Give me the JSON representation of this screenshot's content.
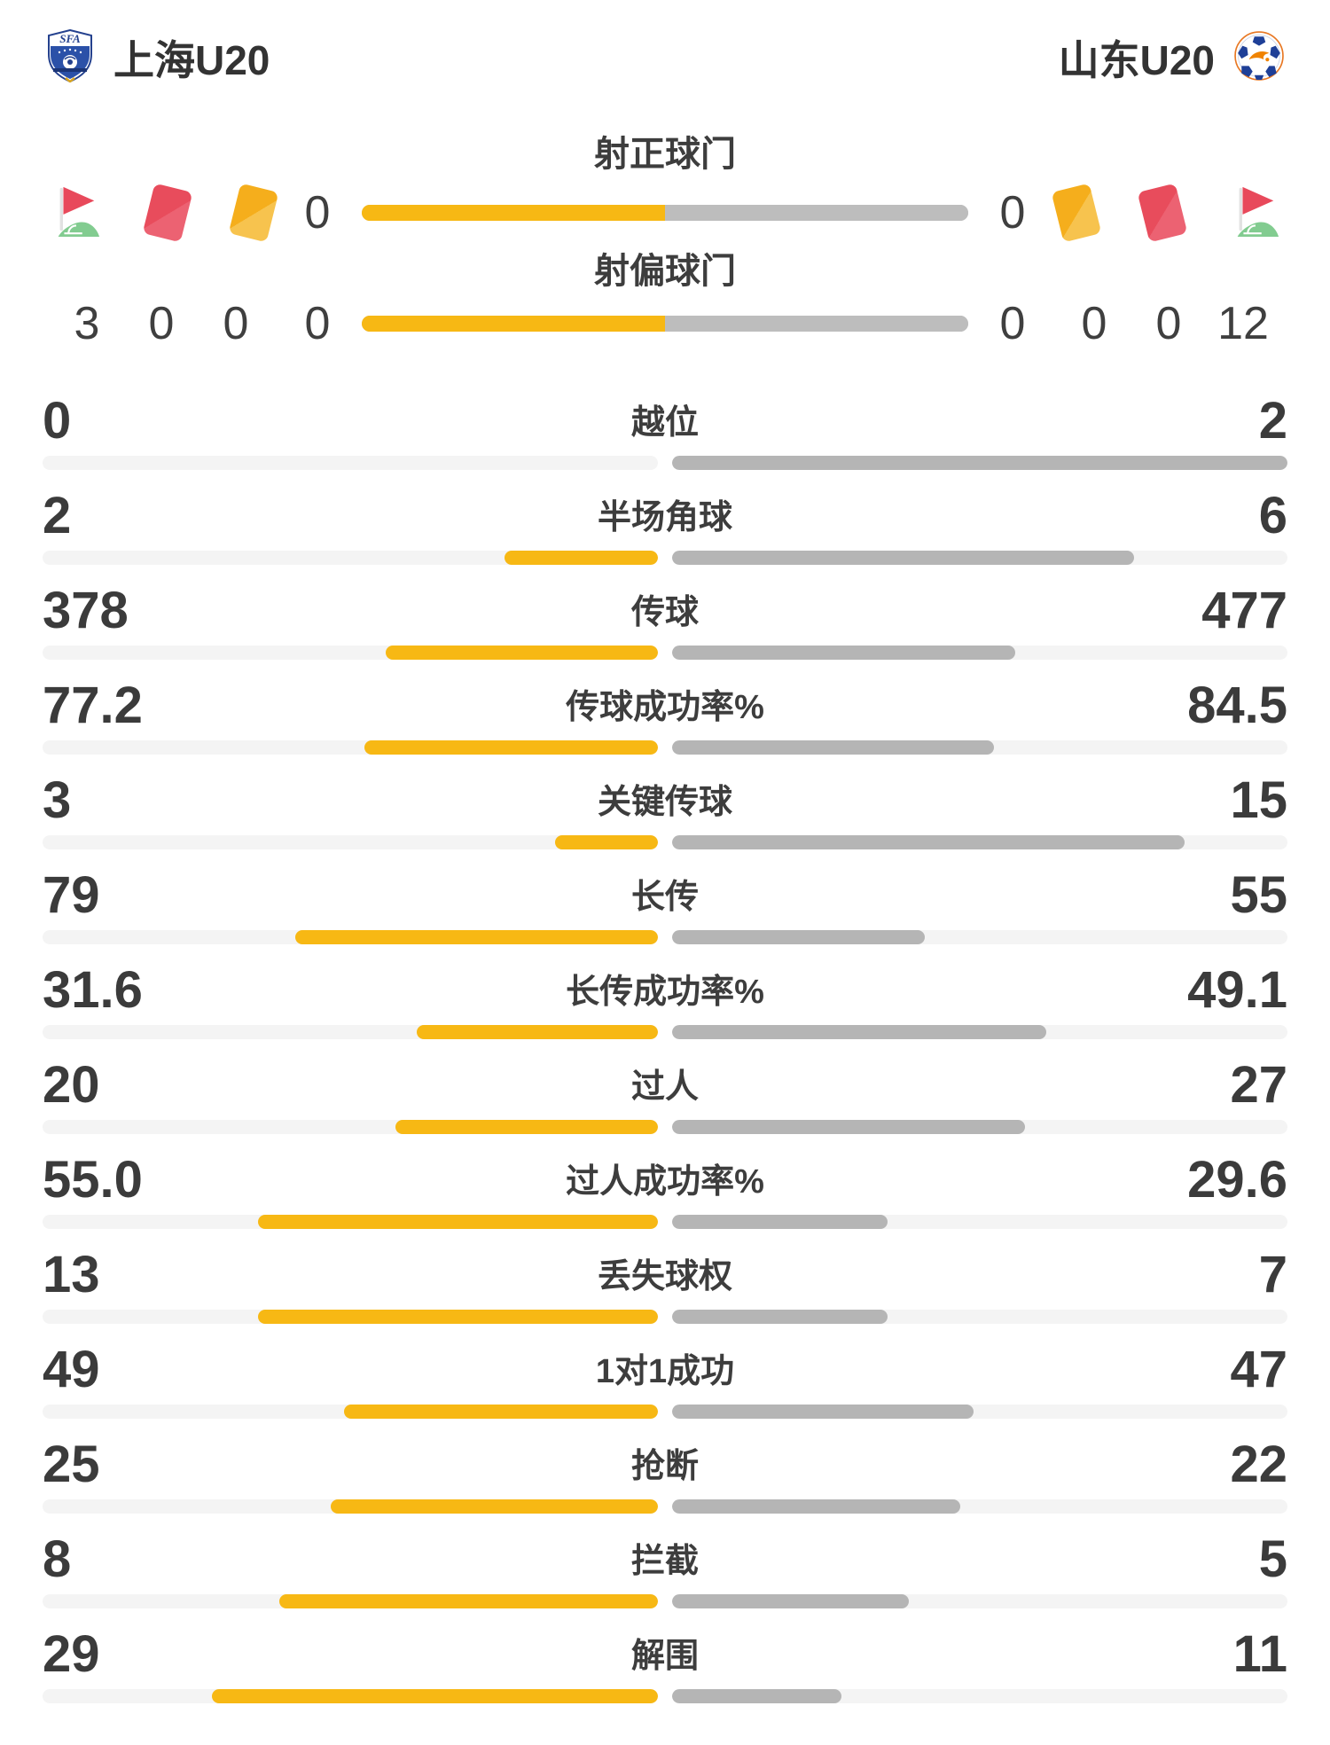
{
  "header": {
    "home_team": "上海U20",
    "away_team": "山东U20"
  },
  "discipline": {
    "icons_home": [
      "corner-flag-icon",
      "red-card-icon",
      "yellow-card-icon"
    ],
    "icons_away": [
      "yellow-card-icon",
      "red-card-icon",
      "corner-flag-icon"
    ],
    "home": {
      "corner_kicks": "3",
      "red_cards": "0",
      "yellow_cards": "0"
    },
    "away": {
      "yellow_cards": "0",
      "red_cards": "0",
      "corner_kicks": "12"
    }
  },
  "colors": {
    "home_fill": "#f7b814",
    "away_fill": "#b5b5b5",
    "away_fill_top": "#bdbdbd",
    "bar_track": "#f4f4f4",
    "text": "#3b3b3b",
    "red_card": "#e84c5c",
    "yellow_card": "#f5ae1c",
    "flag_red": "#e8495b",
    "flag_green": "#82cc90"
  },
  "chart_data": {
    "type": "bar",
    "orientation": "horizontal-paired",
    "legend_position": "none",
    "grid": false,
    "series": [
      {
        "name": "上海U20",
        "color": "#f7b814"
      },
      {
        "name": "山东U20",
        "color": "#b5b5b5"
      }
    ],
    "normalization": "each bar pair filled as value/(home+away), 50/50 when both zero",
    "shots": [
      {
        "label": "射正球门",
        "home": "0",
        "away": "0"
      },
      {
        "label": "射偏球门",
        "home": "0",
        "away": "0"
      }
    ],
    "stats": [
      {
        "label": "越位",
        "home": "0",
        "away": "2"
      },
      {
        "label": "半场角球",
        "home": "2",
        "away": "6"
      },
      {
        "label": "传球",
        "home": "378",
        "away": "477"
      },
      {
        "label": "传球成功率%",
        "home": "77.2",
        "away": "84.5"
      },
      {
        "label": "关键传球",
        "home": "3",
        "away": "15"
      },
      {
        "label": "长传",
        "home": "79",
        "away": "55"
      },
      {
        "label": "长传成功率%",
        "home": "31.6",
        "away": "49.1"
      },
      {
        "label": "过人",
        "home": "20",
        "away": "27"
      },
      {
        "label": "过人成功率%",
        "home": "55.0",
        "away": "29.6"
      },
      {
        "label": "丢失球权",
        "home": "13",
        "away": "7"
      },
      {
        "label": "1对1成功",
        "home": "49",
        "away": "47"
      },
      {
        "label": "抢断",
        "home": "25",
        "away": "22"
      },
      {
        "label": "拦截",
        "home": "8",
        "away": "5"
      },
      {
        "label": "解围",
        "home": "29",
        "away": "11"
      }
    ]
  }
}
